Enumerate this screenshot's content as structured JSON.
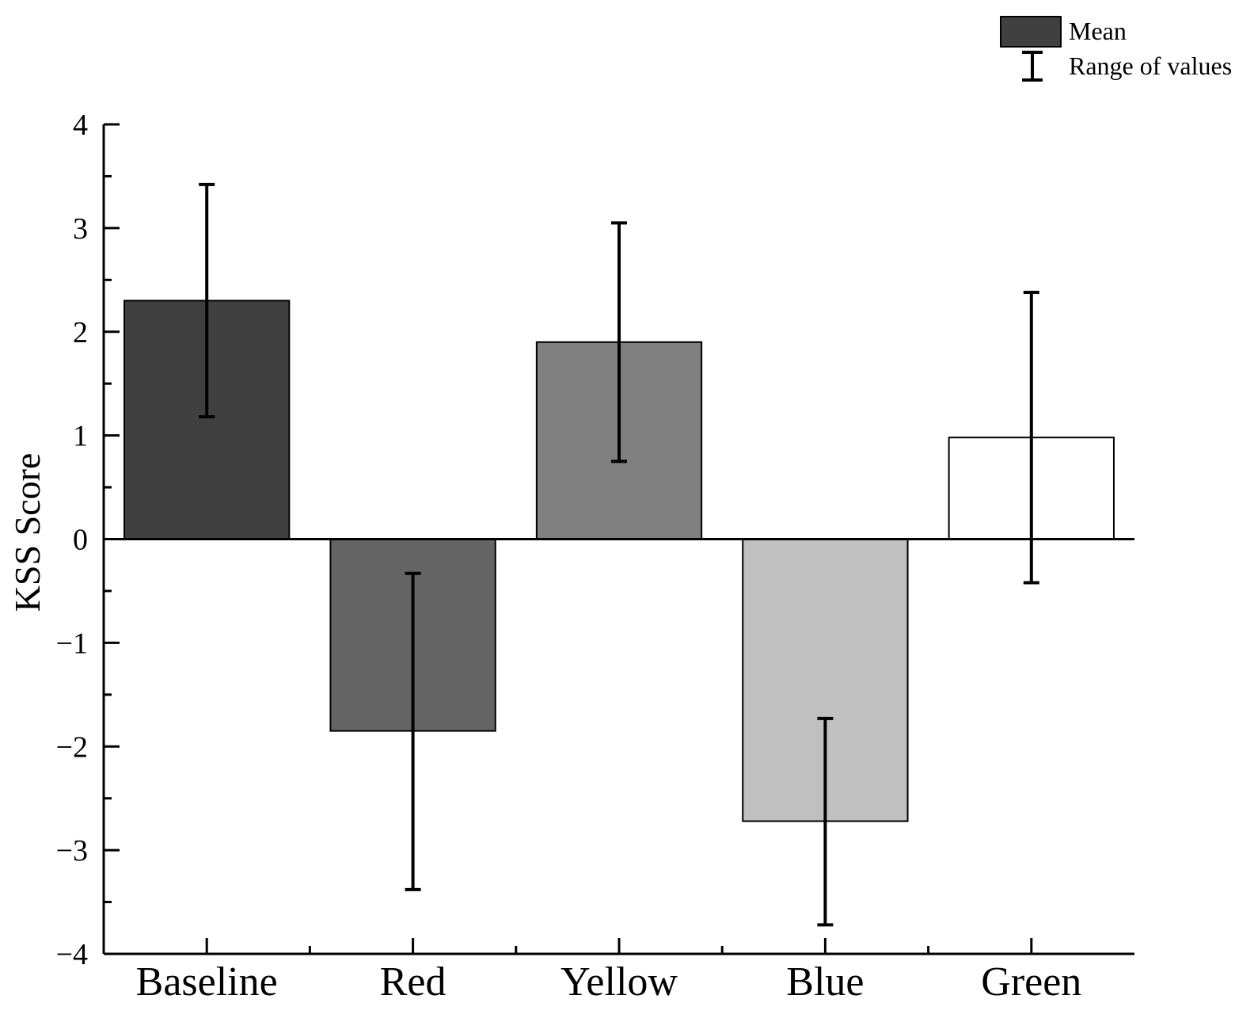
{
  "chart_data": {
    "type": "bar",
    "title": "",
    "xlabel": "",
    "ylabel": "KSS Score",
    "ylim": [
      -4,
      4
    ],
    "yticks": [
      {
        "value": 4,
        "label": "4"
      },
      {
        "value": 3,
        "label": "3"
      },
      {
        "value": 2,
        "label": "2"
      },
      {
        "value": 1,
        "label": "1"
      },
      {
        "value": 0,
        "label": "0"
      },
      {
        "value": -1,
        "label": "−1"
      },
      {
        "value": -2,
        "label": "−2"
      },
      {
        "value": -3,
        "label": "−3"
      },
      {
        "value": -4,
        "label": "−4"
      }
    ],
    "categories": [
      "Baseline",
      "Red",
      "Yellow",
      "Blue",
      "Green"
    ],
    "values": [
      2.3,
      -1.85,
      1.9,
      -2.72,
      0.98
    ],
    "ranges": [
      [
        1.18,
        3.42
      ],
      [
        -3.38,
        -0.33
      ],
      [
        0.75,
        3.05
      ],
      [
        -3.72,
        -1.73
      ],
      [
        -0.42,
        2.38
      ]
    ],
    "bar_colors": [
      "#404040",
      "#646464",
      "#808080",
      "#c0c0c0",
      "#ffffff"
    ],
    "grid": false,
    "legend": {
      "position": "top-right",
      "entries": [
        {
          "label": "Mean",
          "kind": "bar",
          "color": "#404040"
        },
        {
          "label": "Range of values",
          "kind": "errorbar"
        }
      ]
    }
  }
}
